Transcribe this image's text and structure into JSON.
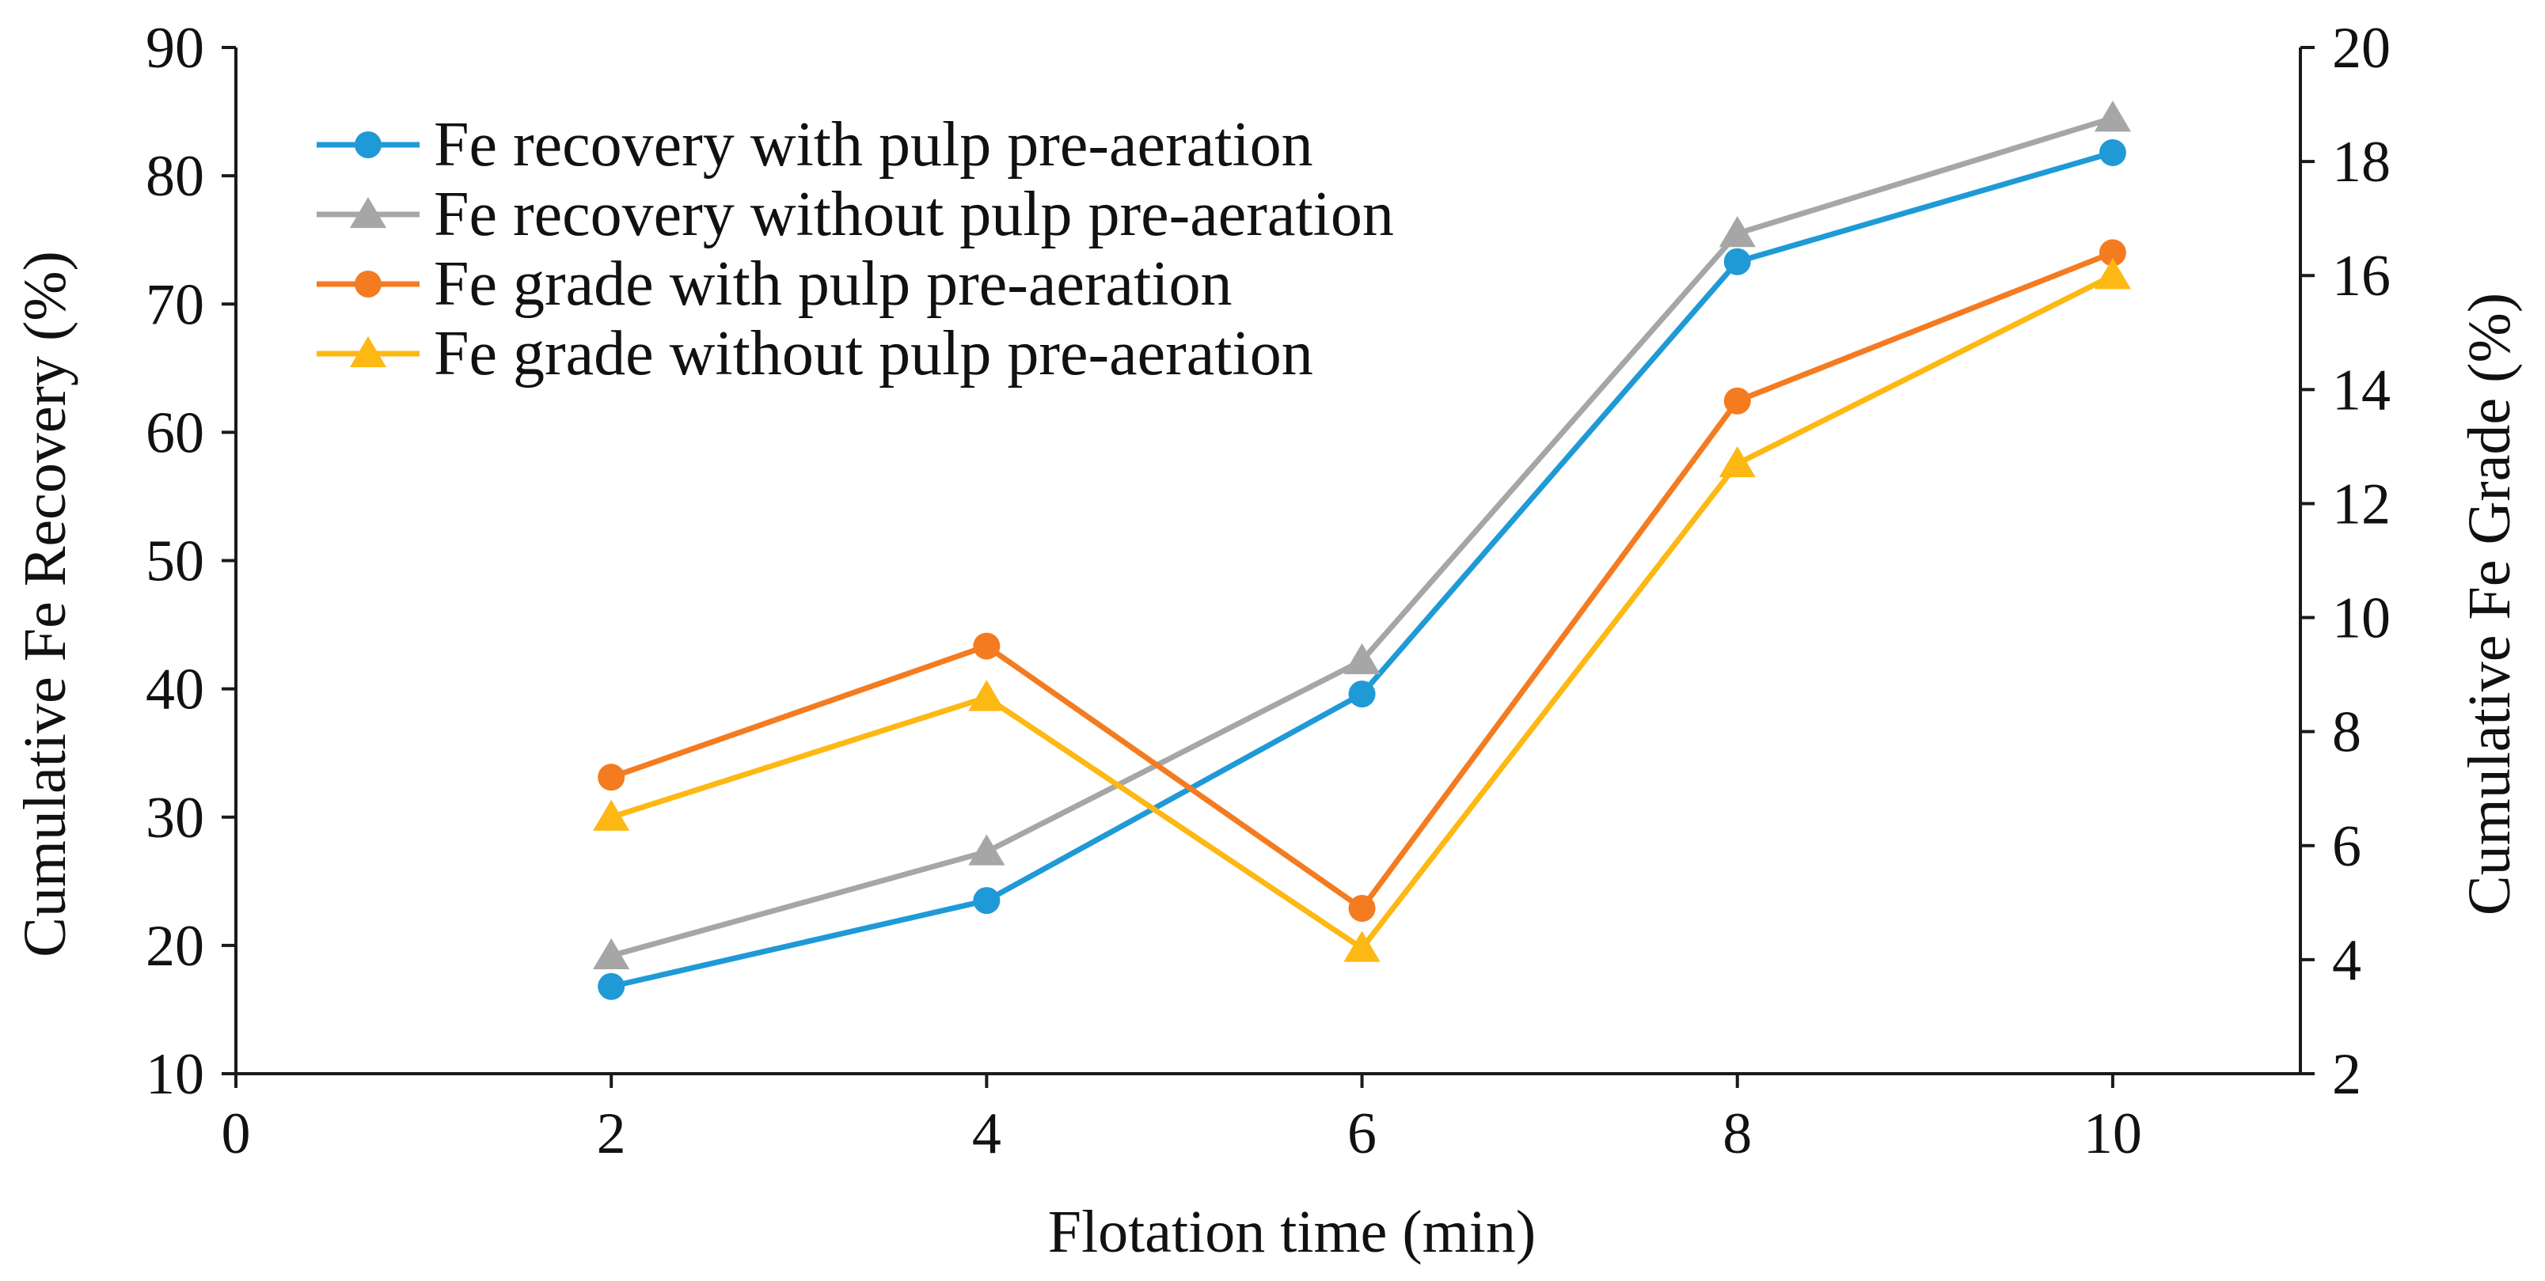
{
  "chart_data": {
    "type": "line",
    "title": "",
    "xlabel": "Flotation time (min)",
    "ylabel_left": "Cumulative Fe Recovery (%)",
    "ylabel_right": "Cumulative Fe Grade (%)",
    "xlim": [
      0,
      11
    ],
    "ylim_left": [
      10,
      90
    ],
    "ylim_right": [
      2,
      20
    ],
    "xticks": [
      "0",
      "2",
      "4",
      "6",
      "8",
      "10"
    ],
    "yticks_left": [
      "10",
      "20",
      "30",
      "40",
      "50",
      "60",
      "70",
      "80",
      "90"
    ],
    "yticks_right": [
      "2",
      "4",
      "6",
      "8",
      "10",
      "12",
      "14",
      "16",
      "18",
      "20"
    ],
    "grid": false,
    "legend_position": "top-left",
    "series": [
      {
        "name": "Fe recovery with pulp pre-aeration",
        "axis": "left",
        "marker": "circle",
        "color": "#1F9AD6",
        "x": [
          2,
          4,
          6,
          8,
          10
        ],
        "values": [
          16.8,
          23.5,
          39.6,
          73.3,
          81.8
        ]
      },
      {
        "name": "Fe recovery without pulp pre-aeration",
        "axis": "left",
        "marker": "triangle",
        "color": "#A6A6A6",
        "x": [
          2,
          4,
          6,
          8,
          10
        ],
        "values": [
          19.2,
          27.3,
          42.2,
          75.5,
          84.5
        ]
      },
      {
        "name": "Fe grade with pulp pre-aeration",
        "axis": "right",
        "marker": "circle",
        "color": "#F47B20",
        "x": [
          2,
          4,
          6,
          8,
          10
        ],
        "values": [
          7.2,
          9.5,
          4.9,
          13.8,
          16.4
        ]
      },
      {
        "name": "Fe grade without pulp pre-aeration",
        "axis": "right",
        "marker": "triangle",
        "color": "#FDB813",
        "x": [
          2,
          4,
          6,
          8,
          10
        ],
        "values": [
          6.5,
          8.6,
          4.2,
          12.7,
          16.0
        ]
      }
    ]
  }
}
